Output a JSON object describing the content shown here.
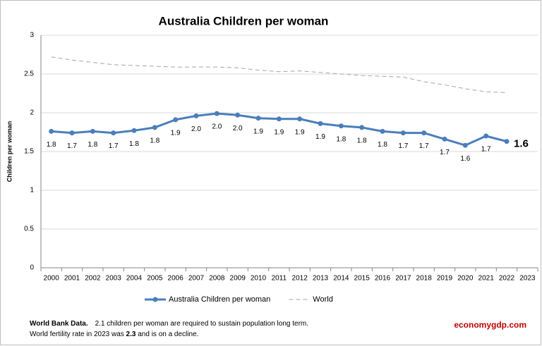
{
  "chart_data": {
    "type": "line",
    "title": "Australia Children per woman",
    "y_label": "Children per woman",
    "categories": [
      "2000",
      "2001",
      "2002",
      "2003",
      "2004",
      "2005",
      "2006",
      "2007",
      "2008",
      "2009",
      "2010",
      "2011",
      "2012",
      "2013",
      "2014",
      "2015",
      "2016",
      "2017",
      "2018",
      "2019",
      "2020",
      "2021",
      "2022",
      "2023"
    ],
    "series": [
      {
        "name": "Australia Children per woman",
        "color": "#4a7ebb",
        "style": "solid",
        "markers": true,
        "values": [
          1.76,
          1.74,
          1.76,
          1.74,
          1.77,
          1.81,
          1.91,
          1.96,
          1.99,
          1.97,
          1.93,
          1.92,
          1.92,
          1.86,
          1.83,
          1.81,
          1.76,
          1.74,
          1.74,
          1.66,
          1.58,
          1.7,
          1.63,
          null
        ],
        "value_labels": [
          "1.8",
          "1.7",
          "1.8",
          "1.7",
          "1.8",
          "1.8",
          "1.9",
          "2.0",
          "2.0",
          "2.0",
          "1.9",
          "1.9",
          "1.9",
          "1.9",
          "1.8",
          "1.8",
          "1.8",
          "1.7",
          "1.7",
          "1.7",
          "1.6",
          "1.7",
          "1.6",
          null
        ]
      },
      {
        "name": "World",
        "color": "#a6a6a6",
        "style": "dashed",
        "markers": false,
        "values": [
          2.72,
          2.68,
          2.65,
          2.62,
          2.61,
          2.6,
          2.59,
          2.59,
          2.59,
          2.58,
          2.55,
          2.53,
          2.54,
          2.52,
          2.5,
          2.48,
          2.47,
          2.46,
          2.4,
          2.36,
          2.31,
          2.27,
          2.26,
          null
        ]
      }
    ],
    "ylim": [
      0,
      3
    ],
    "yticks": [
      0,
      0.5,
      1,
      1.5,
      2,
      2.5,
      3
    ],
    "grid": true,
    "legend": "bottom"
  },
  "footer": {
    "source": "World Bank Data.",
    "note": "2.1 children per woman are required to sustain population long term.",
    "line2_start": "World fertility rate in 2023 was ",
    "line2_value": "2.3",
    "line2_end": " and is on a decline.",
    "brand": "economygdp.com"
  }
}
